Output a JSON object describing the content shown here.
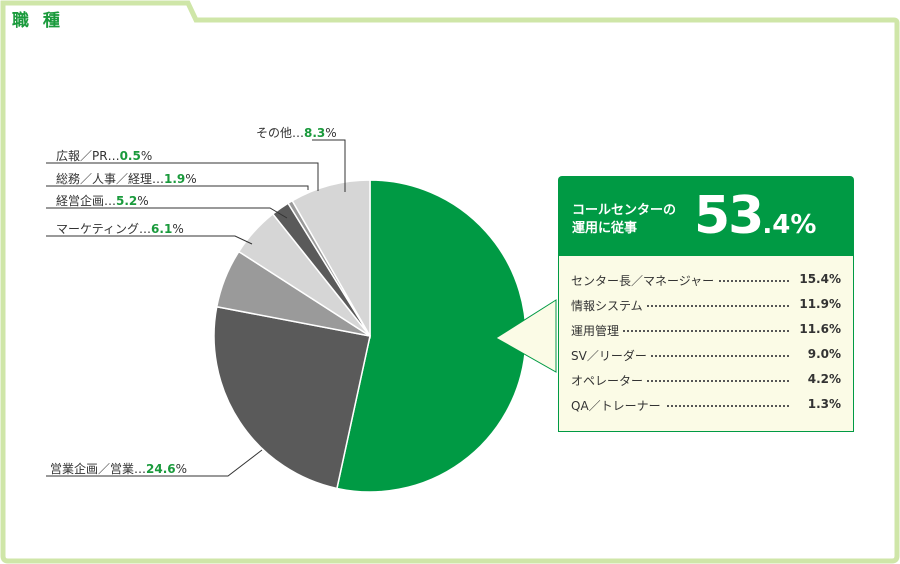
{
  "header": {
    "title": "職 種"
  },
  "chart_data": {
    "type": "pie",
    "slices": [
      {
        "label": "コールセンターの運用に従事",
        "value": 53.4,
        "color": "#009a44"
      },
      {
        "label": "営業企画／営業",
        "value": 24.6,
        "color": "#5a5a5a"
      },
      {
        "label": "マーケティング",
        "value": 6.1,
        "color": "#9a9a9a"
      },
      {
        "label": "経営企画",
        "value": 5.2,
        "color": "#d6d6d6"
      },
      {
        "label": "総務／人事／経理",
        "value": 1.9,
        "color": "#5a5a5a"
      },
      {
        "label": "広報／PR",
        "value": 0.5,
        "color": "#9a9a9a"
      },
      {
        "label": "その他",
        "value": 8.3,
        "color": "#d6d6d6"
      }
    ],
    "labels": [
      {
        "name": "その他…",
        "value": "8.3",
        "unit": "%"
      },
      {
        "name": "広報／PR…",
        "value": "0.5",
        "unit": "%"
      },
      {
        "name": "総務／人事／経理…",
        "value": "1.9",
        "unit": "%"
      },
      {
        "name": "経営企画…",
        "value": "5.2",
        "unit": "%"
      },
      {
        "name": "マーケティング…",
        "value": "6.1",
        "unit": "%"
      },
      {
        "name": "営業企画／営業…",
        "value": "24.6",
        "unit": "%"
      }
    ],
    "callout": {
      "line1": "コールセンターの",
      "line2": "運用に従事",
      "big": "53",
      "small": ".4%",
      "breakdown": [
        {
          "label": "センター長／マネージャー",
          "value": "15.4%"
        },
        {
          "label": "情報システム",
          "value": "11.9%"
        },
        {
          "label": "運用管理",
          "value": "11.6%"
        },
        {
          "label": "SV／リーダー",
          "value": "9.0%"
        },
        {
          "label": "オペレーター",
          "value": "4.2%"
        },
        {
          "label": "QA／トレーナー",
          "value": "1.3%"
        }
      ]
    }
  },
  "colors": {
    "accent": "#1a9a3c",
    "border": "#cfe6a8"
  }
}
